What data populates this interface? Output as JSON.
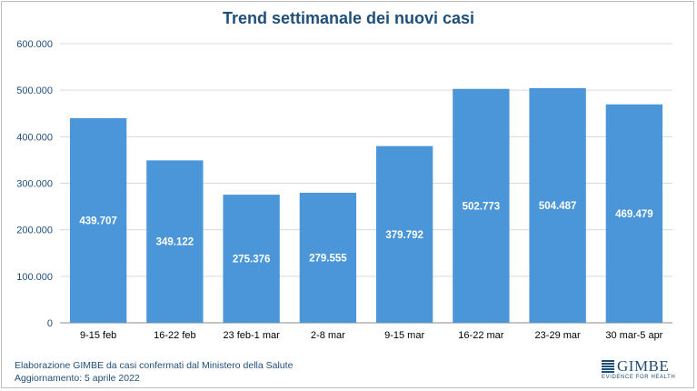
{
  "chart_data": {
    "type": "bar",
    "title": "Trend settimanale dei nuovi casi",
    "categories": [
      "9-15 feb",
      "16-22 feb",
      "23 feb-1 mar",
      "2-8 mar",
      "9-15 mar",
      "16-22 mar",
      "23-29 mar",
      "30 mar-5 apr"
    ],
    "values": [
      439707,
      349122,
      275376,
      279555,
      379792,
      502773,
      504487,
      469479
    ],
    "value_labels": [
      "439.707",
      "349.122",
      "275.376",
      "279.555",
      "379.792",
      "502.773",
      "504.487",
      "469.479"
    ],
    "ylim": [
      0,
      600000
    ],
    "yticks": [
      0,
      100000,
      200000,
      300000,
      400000,
      500000,
      600000
    ],
    "ytick_labels": [
      "0",
      "100.000",
      "200.000",
      "300.000",
      "400.000",
      "500.000",
      "600.000"
    ],
    "grid": true,
    "bar_color": "#4a96d9",
    "axis_text_color": "#1f4e79"
  },
  "footer": {
    "line1": "Elaborazione GIMBE da casi confermati dal Ministero della Salute",
    "line2": "Aggiornamento: 5 aprile 2022"
  },
  "logo": {
    "name": "GIMBE",
    "tagline": "EVIDENCE FOR HEALTH"
  }
}
